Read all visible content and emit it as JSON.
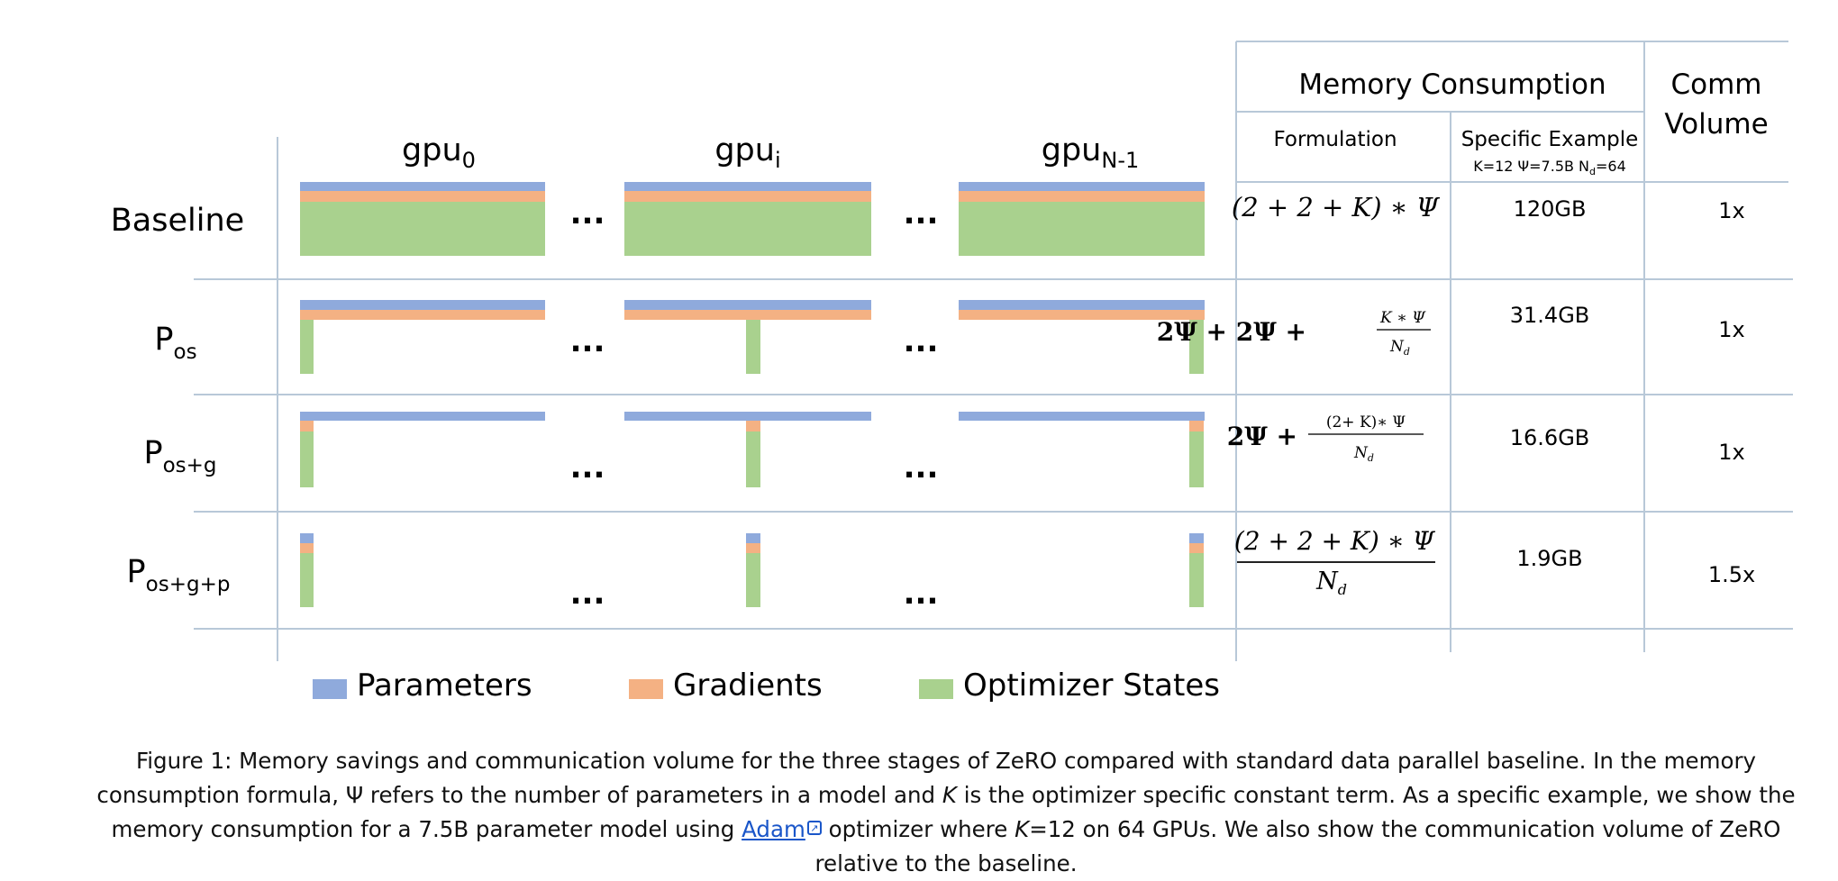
{
  "header": {
    "memory_consumption": "Memory Consumption",
    "comm_line1": "Comm",
    "comm_line2": "Volume",
    "formulation": "Formulation",
    "specific_example": "Specific Example",
    "example_params": "K=12 Ψ=7.5B N",
    "example_params_sub": "d",
    "example_params_tail": "=64"
  },
  "gpus": [
    {
      "base": "gpu",
      "sub": "0"
    },
    {
      "base": "gpu",
      "sub": "i"
    },
    {
      "base": "gpu",
      "sub": "N-1"
    }
  ],
  "ellipsis": "...",
  "rows": [
    {
      "label": "Baseline",
      "label_sub": "",
      "memory": "120GB",
      "comm": "1x"
    },
    {
      "label": "P",
      "label_sub": "os",
      "memory": "31.4GB",
      "comm": "1x"
    },
    {
      "label": "P",
      "label_sub": "os+g",
      "memory": "16.6GB",
      "comm": "1x"
    },
    {
      "label": "P",
      "label_sub": "os+g+p",
      "memory": "1.9GB",
      "comm": "1.5x"
    }
  ],
  "formulas": {
    "baseline": "(2 + 2 + K) ∗ Ψ",
    "pos_main": "2Ψ + 2Ψ +",
    "pos_num": "K ∗ Ψ",
    "pos_den": "N",
    "pos_den_sub": "d",
    "posg_main": "2Ψ +",
    "posg_num": "(2+ K)∗ Ψ",
    "posg_den": "N",
    "posg_den_sub": "d",
    "posgp_num": "(2 +  2 +  K) ∗  Ψ",
    "posgp_den": "N",
    "posgp_den_sub": "d"
  },
  "legend": [
    {
      "label": "Parameters",
      "color": "#8faadc"
    },
    {
      "label": "Gradients",
      "color": "#f4b183"
    },
    {
      "label": "Optimizer States",
      "color": "#a9d18e"
    }
  ],
  "caption": {
    "p1": "Figure 1: Memory savings and communication volume for the three stages of ZeRO compared with standard data parallel baseline. In the memory consumption formula, Ψ refers to the number of parameters in a model and ",
    "k1": "K",
    "p2": " is the optimizer specific constant term. As a specific example, we show the memory consumption for a 7.5B parameter model using ",
    "link": "Adam",
    "p3": " optimizer where ",
    "k2": "K",
    "p4": "=12 on 64 GPUs. We also show the communication volume of ZeRO relative to the baseline."
  }
}
